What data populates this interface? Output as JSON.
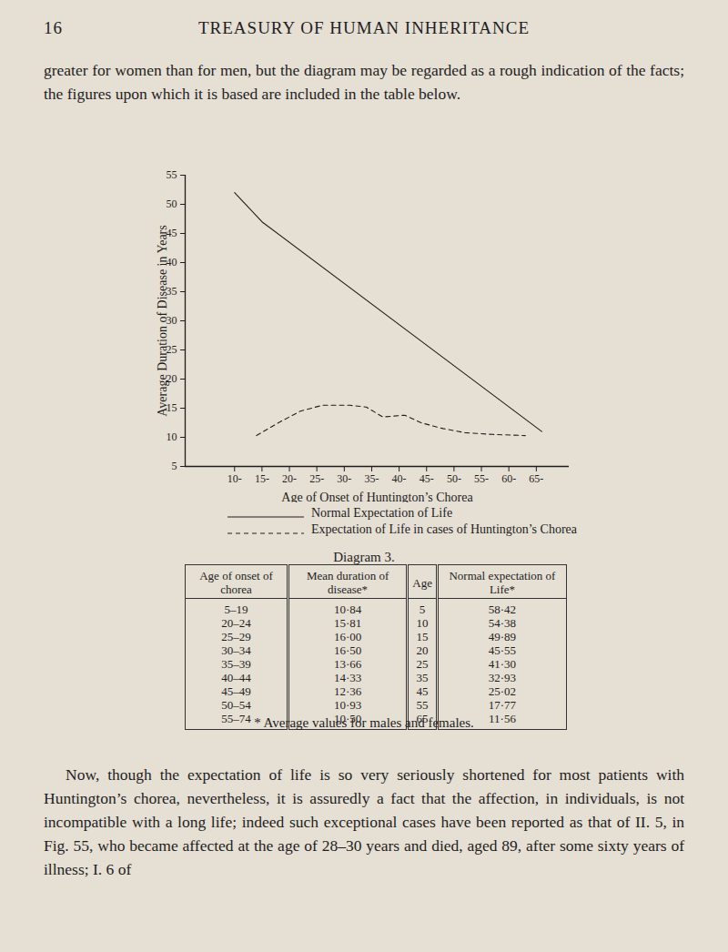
{
  "header": {
    "page_number": "16",
    "title": "TREASURY OF HUMAN INHERITANCE"
  },
  "text_top": "greater for women than for men, but the diagram may be regarded as a rough indication of the facts; the figures upon which it is based are included in the table below.",
  "chart_data": {
    "type": "line",
    "x_label": "Age of Onset of Huntington’s Chorea",
    "y_label": "Average Duration of Disease in Years",
    "xlim": [
      1,
      71
    ],
    "ylim": [
      5,
      55
    ],
    "xticks": [
      {
        "value": 10,
        "label": "10-"
      },
      {
        "value": 15,
        "label": "15-"
      },
      {
        "value": 20,
        "label": "20-"
      },
      {
        "value": 25,
        "label": "25-"
      },
      {
        "value": 30,
        "label": "30-"
      },
      {
        "value": 35,
        "label": "35-"
      },
      {
        "value": 40,
        "label": "40-"
      },
      {
        "value": 45,
        "label": "45-"
      },
      {
        "value": 50,
        "label": "50-"
      },
      {
        "value": 55,
        "label": "55-"
      },
      {
        "value": 60,
        "label": "60-"
      },
      {
        "value": 65,
        "label": "65-"
      }
    ],
    "yticks": [
      5,
      10,
      15,
      20,
      25,
      30,
      35,
      40,
      45,
      50,
      55
    ],
    "series": [
      {
        "name": "Normal Expectation of Life",
        "color": "#1e1e1e",
        "line_style": "solid",
        "x": [
          10,
          15,
          66
        ],
        "values": [
          52,
          47,
          11
        ]
      },
      {
        "name": "Expectation of Life in cases of Huntington’s Chorea",
        "color": "#1e1e1e",
        "line_style": "dashed",
        "x": [
          14,
          18,
          22,
          26,
          31,
          34,
          37,
          41,
          44,
          48,
          52,
          57,
          63
        ],
        "values": [
          10.3,
          12.5,
          14.5,
          15.5,
          15.5,
          15.2,
          13.5,
          13.8,
          12.5,
          11.5,
          10.8,
          10.5,
          10.3
        ]
      }
    ]
  },
  "caption": "Diagram 3.",
  "table": {
    "columns": [
      "Age of onset of chorea",
      "Mean duration of disease*",
      "Age",
      "Normal expectation of Life*"
    ],
    "rows": [
      [
        "5–19",
        "10·84",
        "5",
        "58·42"
      ],
      [
        "20–24",
        "15·81",
        "10",
        "54·38"
      ],
      [
        "25–29",
        "16·00",
        "15",
        "49·89"
      ],
      [
        "30–34",
        "16·50",
        "20",
        "45·55"
      ],
      [
        "35–39",
        "13·66",
        "25",
        "41·30"
      ],
      [
        "40–44",
        "14·33",
        "35",
        "32·93"
      ],
      [
        "45–49",
        "12·36",
        "45",
        "25·02"
      ],
      [
        "50–54",
        "10·93",
        "55",
        "17·77"
      ],
      [
        "55–74",
        "10·50",
        "65",
        "11·56"
      ]
    ]
  },
  "footnote": "* Average values for males and females.",
  "text_bottom": "Now, though the expectation of life is so very seriously shortened for most patients with Huntington’s chorea, nevertheless, it is assuredly a fact that the affection, in individuals, is not incompatible with a long life; indeed such exceptional cases have been reported as that of II. 5, in Fig. 55, who became affected at the age of 28–30 years and died, aged 89, after some sixty years of illness; I. 6 of"
}
